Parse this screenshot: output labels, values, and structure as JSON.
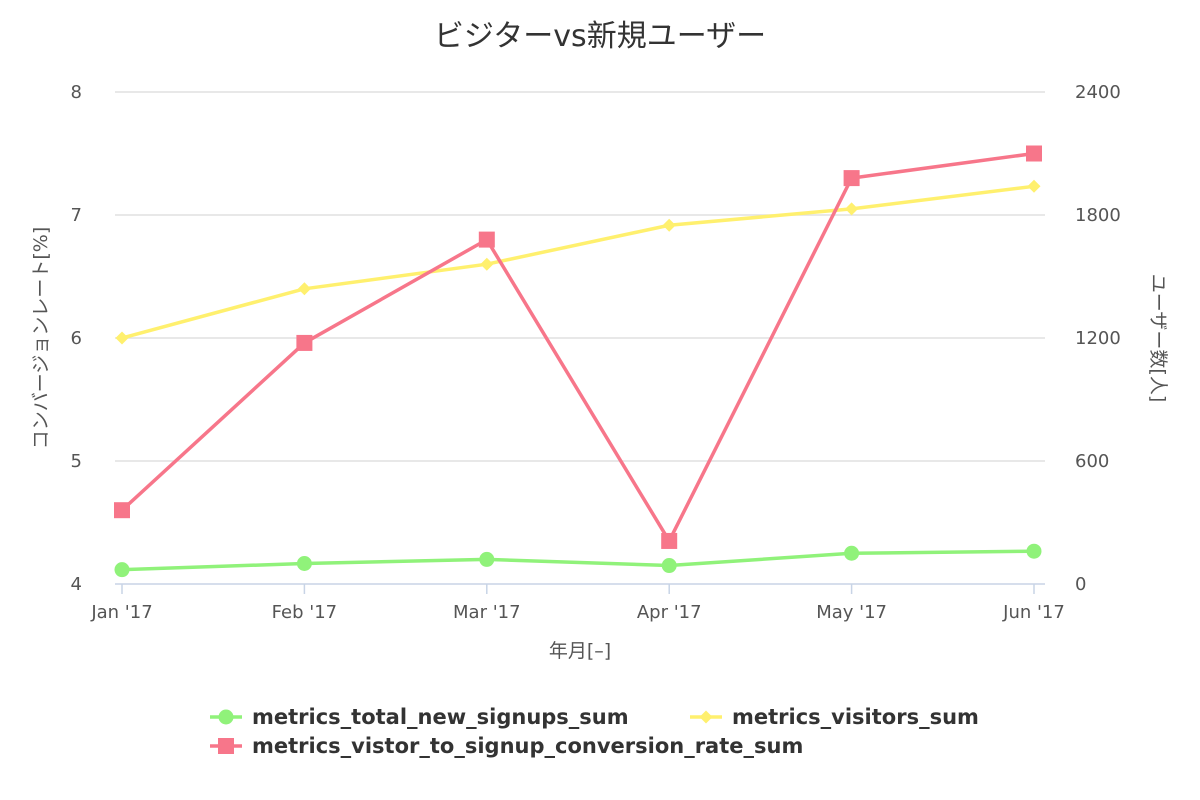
{
  "chart_data": {
    "type": "line",
    "title": "ビジターvs新規ユーザー",
    "xlabel": "年月[–]",
    "ylabel_left": "コンバージョンレート[%]",
    "ylabel_right": "ユーザー数[人]",
    "categories": [
      "Jan '17",
      "Feb '17",
      "Mar '17",
      "Apr '17",
      "May '17",
      "Jun '17"
    ],
    "y_left": {
      "range": [
        4,
        8
      ],
      "ticks": [
        "4",
        "5",
        "6",
        "7",
        "8"
      ]
    },
    "y_right": {
      "range": [
        0,
        2400
      ],
      "ticks": [
        "0",
        "600",
        "1200",
        "1800",
        "2400"
      ]
    },
    "grid": true,
    "legend_position": "bottom",
    "series": [
      {
        "name": "metrics_total_new_signups_sum",
        "axis": "right",
        "marker": "circle",
        "color": "#90f27a",
        "values": [
          70,
          100,
          120,
          90,
          150,
          160
        ]
      },
      {
        "name": "metrics_visitors_sum",
        "axis": "right",
        "marker": "diamond",
        "color": "#fff06e",
        "values": [
          1200,
          1440,
          1560,
          1750,
          1830,
          1940
        ]
      },
      {
        "name": "metrics_vistor_to_signup_conversion_rate_sum",
        "axis": "left",
        "marker": "square",
        "color": "#f7768a",
        "values": [
          4.6,
          5.96,
          6.8,
          4.35,
          7.3,
          7.5
        ]
      }
    ]
  }
}
